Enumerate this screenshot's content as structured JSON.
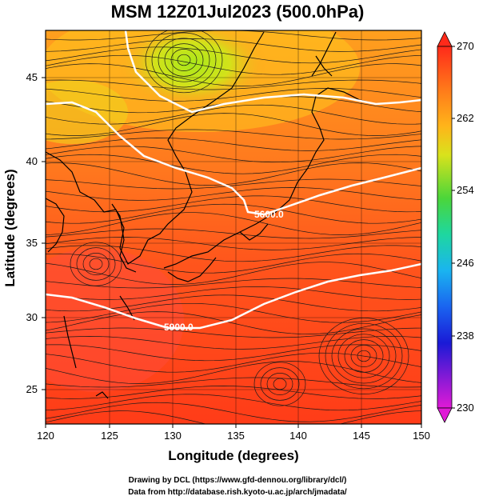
{
  "title": "MSM 12Z01Jul2023 (500.0hPa)",
  "xlabel": "Longitude (degrees)",
  "ylabel": "Latitude  (degrees)",
  "x_ticks": [
    "120",
    "125",
    "130",
    "135",
    "140",
    "145",
    "150"
  ],
  "y_ticks": [
    "25",
    "30",
    "35",
    "40",
    "45"
  ],
  "colorbar": {
    "ticks": [
      "270",
      "262",
      "254",
      "246",
      "238",
      "230"
    ],
    "range": [
      230,
      270
    ]
  },
  "contours": [
    {
      "label": "5600.0"
    },
    {
      "label": "5900.0"
    }
  ],
  "credits": {
    "line1": "Drawing by DCL (https://www.gfd-dennou.org/library/dcl/)",
    "line2": "Data from http://database.rish.kyoto-u.ac.jp/arch/jmadata/"
  },
  "colors": {
    "warm": "#ff3a1a",
    "mid": "#ff8a1e",
    "cool": "#c6e21c",
    "contour": "#ffffff",
    "coast": "#000000"
  },
  "map": {
    "lon_range": [
      120,
      150
    ],
    "lat_range": [
      22.5,
      48
    ]
  }
}
